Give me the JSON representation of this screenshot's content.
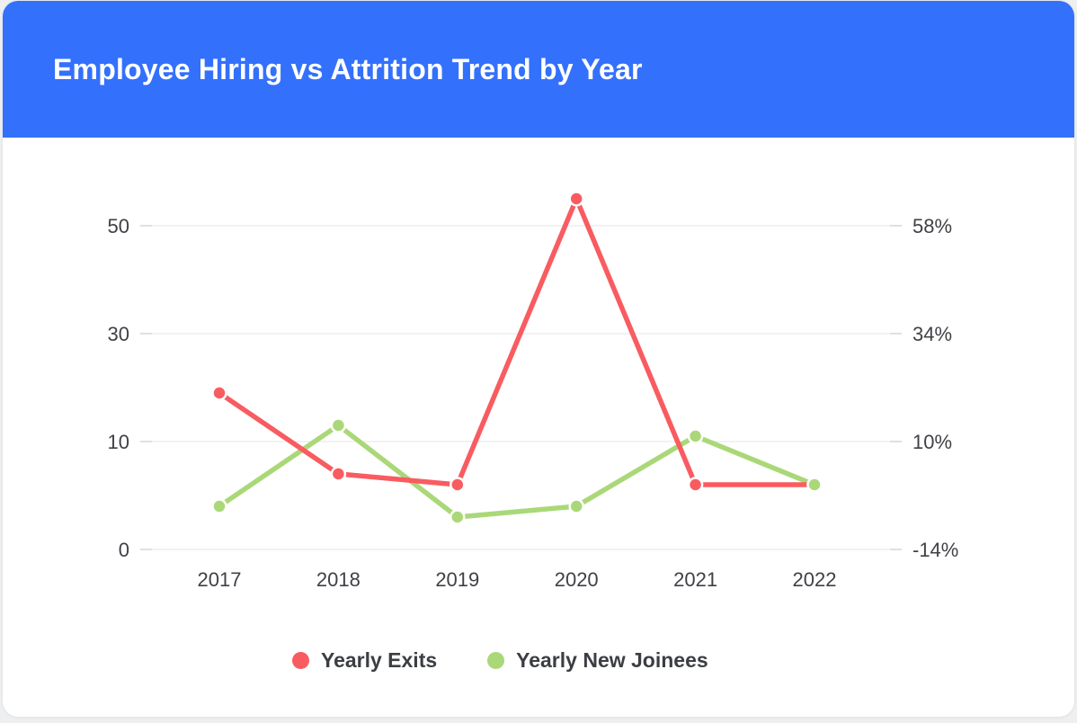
{
  "page": {
    "background": "#edeff1"
  },
  "card": {
    "background": "#ffffff",
    "border_color": "#e4e6e9"
  },
  "header": {
    "title": "Employee Hiring vs Attrition Trend by Year",
    "background": "#3370fc",
    "text_color": "#ffffff"
  },
  "chart_data": {
    "type": "line",
    "title": "Employee Hiring vs Attrition Trend by Year",
    "x": [
      "2017",
      "2018",
      "2019",
      "2020",
      "2021",
      "2022"
    ],
    "series": [
      {
        "name": "Yearly Exits",
        "color": "#f85c61",
        "values": [
          19,
          7,
          6,
          55,
          6,
          6
        ]
      },
      {
        "name": "Yearly New Joinees",
        "color": "#aad878",
        "values": [
          4,
          13,
          3,
          4,
          11,
          6
        ]
      }
    ],
    "left_axis": {
      "tick_values": [
        0,
        10,
        30,
        50
      ],
      "tick_labels": [
        "0",
        "10",
        "30",
        "50"
      ]
    },
    "right_axis": {
      "tick_labels": [
        "-14%",
        "10%",
        "34%",
        "58%"
      ]
    },
    "grid": true,
    "gridline_color": "#ededed",
    "gridline_cap_color": "#d9d9d9",
    "axis_text_color": "#3f4146",
    "legend_position": "bottom"
  },
  "legend": {
    "items": [
      {
        "label": "Yearly Exits",
        "color": "#f85c61"
      },
      {
        "label": "Yearly New Joinees",
        "color": "#aad878"
      }
    ]
  }
}
